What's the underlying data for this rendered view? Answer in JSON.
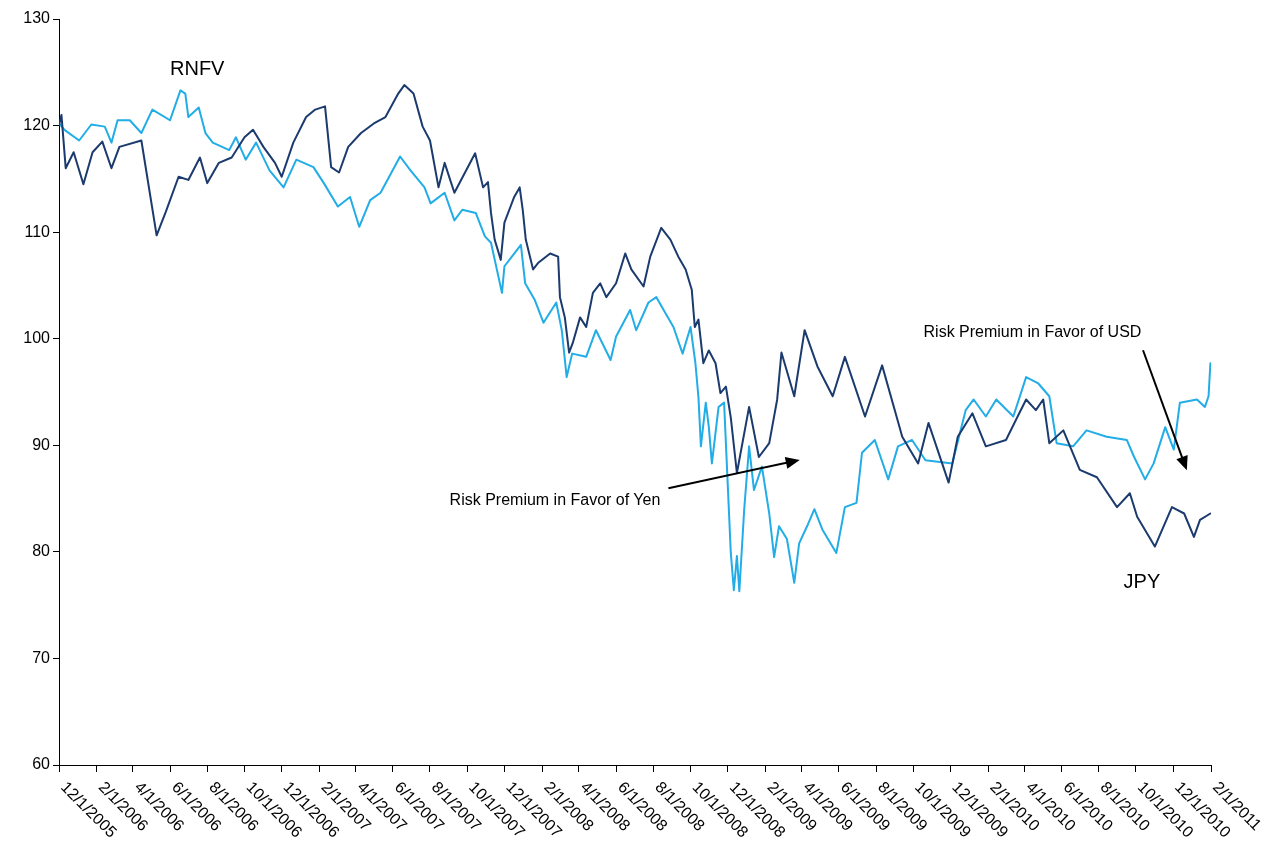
{
  "chart_data": {
    "type": "line",
    "legend": false,
    "grid": false,
    "marker": "none",
    "line_style": "solid",
    "xlim": [
      "2005-12-01",
      "2011-02-01"
    ],
    "xticks": [
      {
        "value": "2005-12-01",
        "label": "12/1/2005"
      },
      {
        "value": "2006-02-01",
        "label": "2/1/2006"
      },
      {
        "value": "2006-04-01",
        "label": "4/1/2006"
      },
      {
        "value": "2006-06-01",
        "label": "6/1/2006"
      },
      {
        "value": "2006-08-01",
        "label": "8/1/2006"
      },
      {
        "value": "2006-10-01",
        "label": "10/1/2006"
      },
      {
        "value": "2006-12-01",
        "label": "12/1/2006"
      },
      {
        "value": "2007-02-01",
        "label": "2/1/2007"
      },
      {
        "value": "2007-04-01",
        "label": "4/1/2007"
      },
      {
        "value": "2007-06-01",
        "label": "6/1/2007"
      },
      {
        "value": "2007-08-01",
        "label": "8/1/2007"
      },
      {
        "value": "2007-10-01",
        "label": "10/1/2007"
      },
      {
        "value": "2007-12-01",
        "label": "12/1/2007"
      },
      {
        "value": "2008-02-01",
        "label": "2/1/2008"
      },
      {
        "value": "2008-04-01",
        "label": "4/1/2008"
      },
      {
        "value": "2008-06-01",
        "label": "6/1/2008"
      },
      {
        "value": "2008-08-01",
        "label": "8/1/2008"
      },
      {
        "value": "2008-10-01",
        "label": "10/1/2008"
      },
      {
        "value": "2008-12-01",
        "label": "12/1/2008"
      },
      {
        "value": "2009-02-01",
        "label": "2/1/2009"
      },
      {
        "value": "2009-04-01",
        "label": "4/1/2009"
      },
      {
        "value": "2009-06-01",
        "label": "6/1/2009"
      },
      {
        "value": "2009-08-01",
        "label": "8/1/2009"
      },
      {
        "value": "2009-10-01",
        "label": "10/1/2009"
      },
      {
        "value": "2009-12-01",
        "label": "12/1/2009"
      },
      {
        "value": "2010-02-01",
        "label": "2/1/2010"
      },
      {
        "value": "2010-04-01",
        "label": "4/1/2010"
      },
      {
        "value": "2010-06-01",
        "label": "6/1/2010"
      },
      {
        "value": "2010-08-01",
        "label": "8/1/2010"
      },
      {
        "value": "2010-10-01",
        "label": "10/1/2010"
      },
      {
        "value": "2010-12-01",
        "label": "12/1/2010"
      },
      {
        "value": "2011-02-01",
        "label": "2/1/2011"
      }
    ],
    "ylim": [
      60,
      130
    ],
    "yticks": [
      60,
      70,
      80,
      90,
      100,
      110,
      120,
      130
    ],
    "annotations": [
      "Risk Premium in Favor of Yen",
      "Risk Premium in Favor of USD"
    ],
    "series": [
      {
        "name": "JPY",
        "color": "#1b3a6e",
        "x": [
          "2005-12-01",
          "2005-12-05",
          "2005-12-12",
          "2005-12-25",
          "2006-01-10",
          "2006-01-25",
          "2006-02-10",
          "2006-02-25",
          "2006-03-10",
          "2006-04-15",
          "2006-05-10",
          "2006-05-25",
          "2006-06-15",
          "2006-07-01",
          "2006-07-20",
          "2006-08-01",
          "2006-08-20",
          "2006-09-10",
          "2006-10-01",
          "2006-10-15",
          "2006-11-01",
          "2006-11-20",
          "2006-12-01",
          "2006-12-20",
          "2007-01-10",
          "2007-01-25",
          "2007-02-10",
          "2007-02-20",
          "2007-03-05",
          "2007-03-20",
          "2007-04-10",
          "2007-05-01",
          "2007-05-20",
          "2007-06-10",
          "2007-06-20",
          "2007-07-05",
          "2007-07-20",
          "2007-08-01",
          "2007-08-15",
          "2007-08-25",
          "2007-09-10",
          "2007-10-14",
          "2007-10-27",
          "2007-11-04",
          "2007-11-09",
          "2007-11-15",
          "2007-11-25",
          "2007-12-01",
          "2007-12-17",
          "2007-12-26",
          "2007-12-31",
          "2008-01-05",
          "2008-01-17",
          "2008-01-25",
          "2008-02-14",
          "2008-02-27",
          "2008-03-01",
          "2008-03-09",
          "2008-03-16",
          "2008-03-22",
          "2008-04-03",
          "2008-04-13",
          "2008-04-24",
          "2008-05-06",
          "2008-05-16",
          "2008-06-01",
          "2008-06-16",
          "2008-06-26",
          "2008-07-16",
          "2008-07-27",
          "2008-08-14",
          "2008-08-29",
          "2008-09-11",
          "2008-09-23",
          "2008-10-03",
          "2008-10-08",
          "2008-10-14",
          "2008-10-22",
          "2008-10-31",
          "2008-11-11",
          "2008-11-19",
          "2008-11-28",
          "2008-12-06",
          "2008-12-16",
          "2009-01-05",
          "2009-01-21",
          "2009-02-07",
          "2009-02-20",
          "2009-02-27",
          "2009-03-20",
          "2009-04-06",
          "2009-04-27",
          "2009-05-22",
          "2009-06-11",
          "2009-07-14",
          "2009-08-11",
          "2009-09-13",
          "2009-10-09",
          "2009-10-26",
          "2009-11-28",
          "2009-12-13",
          "2010-01-06",
          "2010-01-28",
          "2010-03-02",
          "2010-04-04",
          "2010-04-20",
          "2010-05-02",
          "2010-05-12",
          "2010-06-04",
          "2010-07-01",
          "2010-07-29",
          "2010-08-31",
          "2010-09-21",
          "2010-10-03",
          "2010-11-01",
          "2010-11-29",
          "2010-12-19",
          "2011-01-04",
          "2011-01-14",
          "2011-01-31"
        ],
        "values": [
          120.0,
          121.0,
          116.0,
          117.5,
          114.5,
          117.5,
          118.5,
          116.0,
          118.0,
          118.6,
          109.7,
          111.9,
          115.2,
          114.9,
          117.0,
          114.6,
          116.5,
          117.0,
          118.9,
          119.6,
          118.0,
          116.5,
          115.2,
          118.4,
          120.8,
          121.5,
          121.8,
          116.1,
          115.6,
          118.0,
          119.3,
          120.2,
          120.8,
          123.0,
          123.8,
          123.0,
          119.9,
          118.6,
          114.2,
          116.5,
          113.7,
          117.4,
          114.2,
          114.7,
          111.8,
          109.3,
          107.4,
          110.9,
          113.3,
          114.2,
          112.1,
          109.3,
          106.5,
          107.1,
          108.0,
          107.7,
          103.9,
          102.0,
          98.7,
          99.6,
          102.0,
          101.1,
          104.3,
          105.2,
          103.9,
          105.2,
          108.0,
          106.5,
          104.9,
          107.7,
          110.4,
          109.3,
          107.7,
          106.5,
          104.6,
          101.1,
          101.8,
          97.7,
          98.9,
          97.7,
          94.9,
          95.5,
          92.6,
          87.4,
          93.6,
          88.9,
          90.2,
          94.3,
          98.7,
          94.6,
          100.8,
          97.4,
          94.6,
          98.3,
          92.7,
          97.5,
          90.8,
          88.3,
          92.1,
          86.5,
          90.8,
          93.0,
          89.9,
          90.5,
          94.3,
          93.3,
          94.3,
          90.2,
          91.4,
          87.7,
          87.0,
          84.2,
          85.5,
          83.3,
          80.5,
          84.2,
          83.6,
          81.4,
          83.0,
          83.6
        ]
      },
      {
        "name": "RNFV",
        "color": "#22ade6",
        "x": [
          "2005-12-01",
          "2005-12-10",
          "2006-01-03",
          "2006-01-23",
          "2006-02-14",
          "2006-02-25",
          "2006-03-07",
          "2006-03-27",
          "2006-04-15",
          "2006-05-03",
          "2006-06-01",
          "2006-06-18",
          "2006-06-26",
          "2006-07-01",
          "2006-07-18",
          "2006-07-29",
          "2006-08-10",
          "2006-09-06",
          "2006-09-17",
          "2006-10-03",
          "2006-10-20",
          "2006-11-11",
          "2006-12-04",
          "2006-12-25",
          "2007-01-22",
          "2007-02-08",
          "2007-03-03",
          "2007-03-23",
          "2007-04-07",
          "2007-04-25",
          "2007-05-12",
          "2007-06-13",
          "2007-06-30",
          "2007-07-23",
          "2007-08-02",
          "2007-08-25",
          "2007-09-10",
          "2007-09-23",
          "2007-10-15",
          "2007-10-30",
          "2007-11-09",
          "2007-11-27",
          "2007-12-01",
          "2007-12-28",
          "2008-01-04",
          "2008-01-20",
          "2008-02-03",
          "2008-02-24",
          "2008-03-04",
          "2008-03-12",
          "2008-03-21",
          "2008-04-13",
          "2008-04-29",
          "2008-05-23",
          "2008-06-01",
          "2008-06-24",
          "2008-07-04",
          "2008-07-24",
          "2008-08-06",
          "2008-08-21",
          "2008-09-03",
          "2008-09-18",
          "2008-10-01",
          "2008-10-09",
          "2008-10-14",
          "2008-10-18",
          "2008-10-26",
          "2008-10-31",
          "2008-11-05",
          "2008-11-16",
          "2008-11-25",
          "2008-12-06",
          "2008-12-11",
          "2008-12-16",
          "2008-12-20",
          "2008-12-28",
          "2009-01-05",
          "2009-01-13",
          "2009-01-26",
          "2009-02-07",
          "2009-02-15",
          "2009-02-23",
          "2009-03-08",
          "2009-03-20",
          "2009-03-28",
          "2009-04-10",
          "2009-04-22",
          "2009-05-05",
          "2009-05-28",
          "2009-06-11",
          "2009-06-30",
          "2009-07-09",
          "2009-07-30",
          "2009-08-21",
          "2009-09-06",
          "2009-09-29",
          "2009-10-21",
          "2009-12-04",
          "2009-12-15",
          "2009-12-26",
          "2010-01-08",
          "2010-01-28",
          "2010-02-14",
          "2010-03-14",
          "2010-04-04",
          "2010-04-24",
          "2010-05-12",
          "2010-05-24",
          "2010-06-20",
          "2010-07-12",
          "2010-08-14",
          "2010-09-16",
          "2010-09-28",
          "2010-10-16",
          "2010-10-30",
          "2010-11-18",
          "2010-12-02",
          "2010-12-12",
          "2011-01-09",
          "2011-01-22",
          "2011-01-28",
          "2011-01-31"
        ],
        "values": [
          120.2,
          119.6,
          118.6,
          120.1,
          119.9,
          118.4,
          120.5,
          120.5,
          119.3,
          121.5,
          120.5,
          123.3,
          123.0,
          120.8,
          121.7,
          119.3,
          118.4,
          117.7,
          118.9,
          116.8,
          118.4,
          115.8,
          114.2,
          116.8,
          116.1,
          114.6,
          112.4,
          113.3,
          110.5,
          113.0,
          113.7,
          117.1,
          115.8,
          114.2,
          112.7,
          113.7,
          111.1,
          112.1,
          111.8,
          109.6,
          109.0,
          104.3,
          106.8,
          108.8,
          105.2,
          103.6,
          101.5,
          103.4,
          100.8,
          96.4,
          98.6,
          98.3,
          100.8,
          98.0,
          100.2,
          102.7,
          100.8,
          103.4,
          103.9,
          102.4,
          101.1,
          98.6,
          101.1,
          97.7,
          94.5,
          89.9,
          94.0,
          91.7,
          88.3,
          93.6,
          94.0,
          79.9,
          76.4,
          79.6,
          76.3,
          84.0,
          89.9,
          85.8,
          88.0,
          83.6,
          79.5,
          82.4,
          81.2,
          77.1,
          80.8,
          82.4,
          84.0,
          82.1,
          79.9,
          84.2,
          84.6,
          89.3,
          90.5,
          86.8,
          89.9,
          90.5,
          88.6,
          88.3,
          90.8,
          93.3,
          94.3,
          92.7,
          94.3,
          92.7,
          96.4,
          95.8,
          94.6,
          90.2,
          89.9,
          91.4,
          90.8,
          90.5,
          88.9,
          86.8,
          88.3,
          91.7,
          89.6,
          94.0,
          94.3,
          93.6,
          94.6,
          97.7
        ]
      }
    ]
  }
}
